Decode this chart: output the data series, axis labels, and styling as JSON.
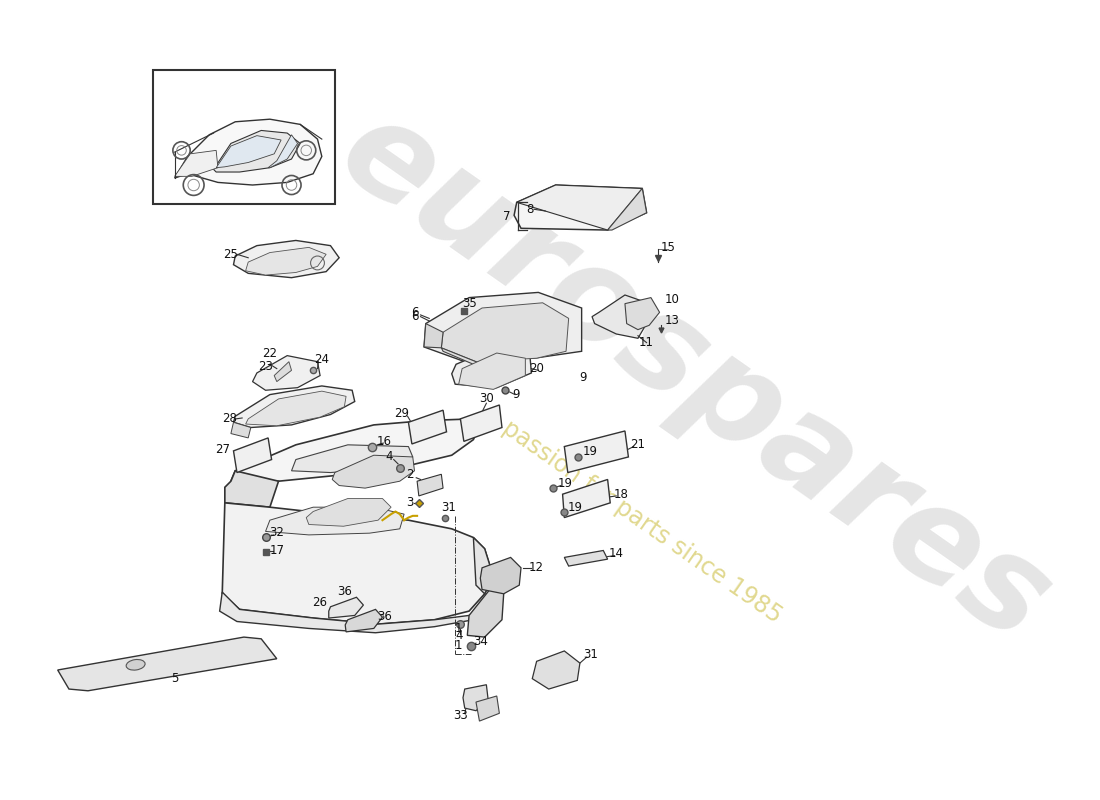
{
  "background_color": "#ffffff",
  "watermark1_text": "eurospares",
  "watermark1_color": "#cccccc",
  "watermark1_alpha": 0.5,
  "watermark2_text": "a passion for parts since 1985",
  "watermark2_color": "#d4c860",
  "watermark2_alpha": 0.7,
  "line_color": "#333333",
  "fill_color": "#f0f0f0",
  "label_fontsize": 8.5,
  "label_color": "#111111"
}
